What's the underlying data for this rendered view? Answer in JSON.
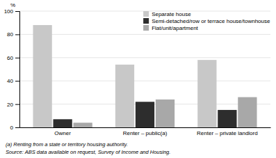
{
  "chart_data": {
    "type": "bar",
    "categories": [
      "Owner",
      "Renter – public(a)",
      "Renter – private landlord"
    ],
    "series": [
      {
        "name": "Separate house",
        "color": "#c8c8c8",
        "values": [
          88,
          54,
          58
        ]
      },
      {
        "name": "Semi-detached/row or terrace house/townhouse",
        "color": "#2d2d2d",
        "values": [
          7,
          22,
          15
        ]
      },
      {
        "name": "Flat/unit/apartment",
        "color": "#a8a8a8",
        "values": [
          4,
          24,
          26
        ]
      }
    ],
    "ylabel": "%",
    "ylim": [
      0,
      100
    ],
    "yticks": [
      0,
      20,
      40,
      60,
      80,
      100
    ],
    "grid": true,
    "legend": "top-right",
    "annotations": [
      "(a) Renting from a state or territory housing authority.",
      "Source: ABS data available on request, Survey of Income and Housing."
    ]
  }
}
